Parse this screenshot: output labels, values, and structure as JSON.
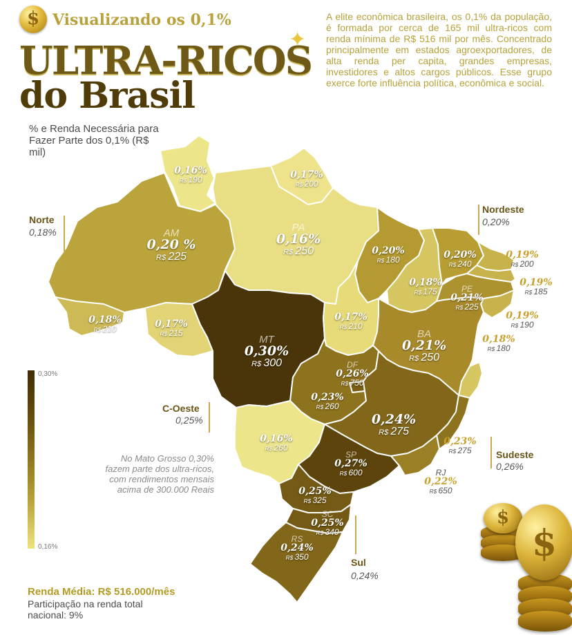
{
  "header": {
    "subtitle": "Visualizando os 0,1%",
    "title_line1": "ULTRA-RICOS",
    "title_line2": "do Brasil",
    "intro": "A elite econômica brasileira, os 0,1% da população, é formada por cerca de 165 mil ultra-ricos com renda mínima de R$ 516 mil por mês. Concentrado principalmente em estados agroexportadores, de alta renda per capita, grandes empresas, investidores e altos cargos públicos. Esse grupo exerce forte influência política, econômica e social.",
    "legend_title": "% e Renda Necessária para Fazer Parte dos 0,1% (R$ mil)"
  },
  "scale": {
    "max_label": "0,30%",
    "min_label": "0,16%",
    "max_color": "#3f2d05",
    "min_color": "#ede37e"
  },
  "currency_prefix": "R$",
  "regions": [
    {
      "name": "Norte",
      "pct": "0,18%"
    },
    {
      "name": "Nordeste",
      "pct": "0,20%"
    },
    {
      "name": "C-Oeste",
      "pct": "0,25%"
    },
    {
      "name": "Sudeste",
      "pct": "0,26%"
    },
    {
      "name": "Sul",
      "pct": "0,24%"
    }
  ],
  "note": "No Mato Grosso 0,30% fazem parte dos ultra-ricos, com rendimentos mensais acima de 300.000 Reais",
  "footer": {
    "average": "Renda Média: R$ 516.000/mês",
    "share": "Participação na renda total nacional: 9%"
  },
  "states": [
    {
      "abbr": "",
      "pct": "0,16%",
      "income": "190",
      "color": "#ede58a"
    },
    {
      "abbr": "",
      "pct": "0,17%",
      "income": "200",
      "color": "#eee38b"
    },
    {
      "abbr": "AM",
      "pct": "0,20 %",
      "income": "225",
      "color": "#bba43c"
    },
    {
      "abbr": "PA",
      "pct": "0,16%",
      "income": "250",
      "color": "#e9de84"
    },
    {
      "abbr": "",
      "pct": "0,18%",
      "income": "210",
      "color": "#cdb955"
    },
    {
      "abbr": "",
      "pct": "0,17%",
      "income": "215",
      "color": "#e2d475"
    },
    {
      "abbr": "MT",
      "pct": "0,30%",
      "income": "300",
      "color": "#4a350a"
    },
    {
      "abbr": "",
      "pct": "0,20%",
      "income": "180",
      "color": "#b59a31"
    },
    {
      "abbr": "",
      "pct": "0,18%",
      "income": "175",
      "color": "#d6c661"
    },
    {
      "abbr": "",
      "pct": "0,17%",
      "income": "210",
      "color": "#e6da79"
    },
    {
      "abbr": "",
      "pct": "0,20%",
      "income": "240",
      "color": "#b89d33"
    },
    {
      "abbr": "PE",
      "pct": "0,21%",
      "income": "225",
      "color": "#ad9230"
    },
    {
      "abbr": "",
      "pct": "0,19%",
      "income": "200",
      "color": "#c7b24c"
    },
    {
      "abbr": "",
      "pct": "0,19%",
      "income": "185",
      "color": "#c7b24c"
    },
    {
      "abbr": "",
      "pct": "0,19%",
      "income": "190",
      "color": "#c7b24c"
    },
    {
      "abbr": "",
      "pct": "0,18%",
      "income": "180",
      "color": "#d6c661"
    },
    {
      "abbr": "BA",
      "pct": "0,21%",
      "income": "250",
      "color": "#a98a2a"
    },
    {
      "abbr": "DF",
      "pct": "0,26%",
      "income": "750",
      "color": "#7a5e15"
    },
    {
      "abbr": "",
      "pct": "0,23%",
      "income": "260",
      "color": "#8e731e"
    },
    {
      "abbr": "",
      "pct": "0,24%",
      "income": "275",
      "color": "#82671a"
    },
    {
      "abbr": "",
      "pct": "0,16%",
      "income": "260",
      "color": "#ede58a"
    },
    {
      "abbr": "SP",
      "pct": "0,27%",
      "income": "600",
      "color": "#5c440c"
    },
    {
      "abbr": "",
      "pct": "0,23%",
      "income": "275",
      "color": "#8e731e"
    },
    {
      "abbr": "RJ",
      "pct": "0,22%",
      "income": "650",
      "color": "#9a7f24"
    },
    {
      "abbr": "",
      "pct": "0,25%",
      "income": "325",
      "color": "#745a14"
    },
    {
      "abbr": "SC",
      "pct": "0,25%",
      "income": "340",
      "color": "#745a14"
    },
    {
      "abbr": "RS",
      "pct": "0,24%",
      "income": "350",
      "color": "#82671a"
    }
  ]
}
